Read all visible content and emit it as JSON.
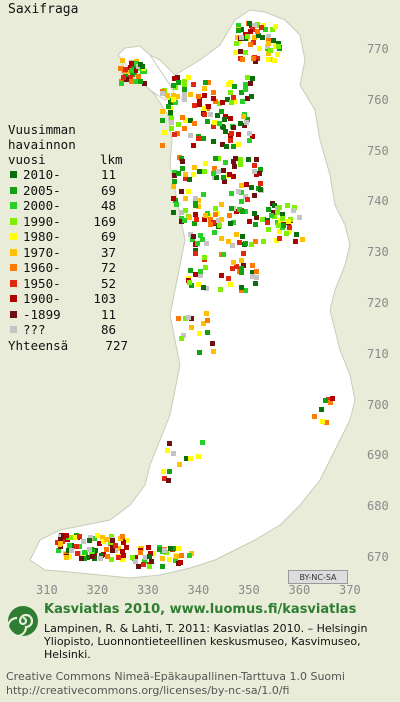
{
  "title": "Saxifraga",
  "legend": {
    "heading": [
      "Vuusimman",
      "havainnon"
    ],
    "heading_col_left": "vuosi",
    "heading_col_right": "lkm",
    "rows": [
      {
        "label": "2010-",
        "count": "11",
        "color": "#0a6e0a"
      },
      {
        "label": "2005-",
        "count": "69",
        "color": "#10a010"
      },
      {
        "label": "2000-",
        "count": "48",
        "color": "#26d026"
      },
      {
        "label": "1990-",
        "count": "169",
        "color": "#7cf000"
      },
      {
        "label": "1980-",
        "count": "69",
        "color": "#ffff00"
      },
      {
        "label": "1970-",
        "count": "37",
        "color": "#ffc000"
      },
      {
        "label": "1960-",
        "count": "72",
        "color": "#ff7a00"
      },
      {
        "label": "1950-",
        "count": "52",
        "color": "#e02810"
      },
      {
        "label": "1900-",
        "count": "103",
        "color": "#b00000"
      },
      {
        "label": "-1899",
        "count": "11",
        "color": "#6e1010"
      },
      {
        "label": "???",
        "count": "86",
        "color": "#c4c4c4"
      }
    ],
    "total_label": "Yhteensä",
    "total_count": "727"
  },
  "northing_ticks": [
    "770",
    "760",
    "750",
    "740",
    "730",
    "720",
    "710",
    "700",
    "690",
    "680",
    "670"
  ],
  "easting_ticks": [
    "310",
    "320",
    "330",
    "340",
    "350",
    "360",
    "370"
  ],
  "cc_badge": "BY-NC-SA",
  "footer": {
    "title": "Kasviatlas 2010, www.luomus.fi/kasviatlas",
    "citation": "Lampinen, R. & Lahti, T. 2011: Kasviatlas 2010. – Helsingin Yliopisto, Luonnontieteellinen keskusmuseo, Kasvimuseo, Helsinki.",
    "license": "Creative Commons Nimeä-Epäkaupallinen-Tarttuva 1.0 Suomi http://creativecommons.org/licenses/by-nc-sa/1.0/fi"
  },
  "map": {
    "land_color": "#ffffff",
    "water_color": "#e8ecd8",
    "border_color": "#c8ccb8"
  }
}
